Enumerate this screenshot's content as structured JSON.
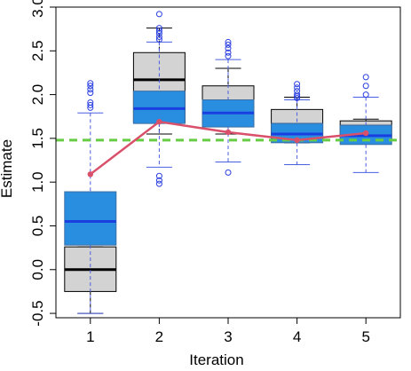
{
  "chart_data": {
    "type": "boxplot",
    "title": "",
    "xlabel": "Iteration",
    "ylabel": "Estimate",
    "categories": [
      "1",
      "2",
      "3",
      "4",
      "5"
    ],
    "ylim": [
      -0.55,
      3.0
    ],
    "yticks": [
      "-0.5",
      "0.0",
      "0.5",
      "1.0",
      "1.5",
      "2.0",
      "2.5",
      "3.0"
    ],
    "reference_line": {
      "value": 1.48,
      "style": "dashed",
      "color": "#66cc44"
    },
    "series": [
      {
        "color": "#d3d3d3",
        "median_color": "#000000",
        "whisker_color": "#000000",
        "boxes": [
          {
            "q1": -0.25,
            "median": 0.0,
            "q3": 0.26,
            "lower": -0.5,
            "upper": 0.26,
            "outliers": []
          },
          {
            "q1": 1.68,
            "median": 2.17,
            "q3": 2.48,
            "lower": 1.55,
            "upper": 2.76,
            "outliers": []
          },
          {
            "q1": 1.66,
            "median": 1.88,
            "q3": 2.1,
            "lower": 1.55,
            "upper": 2.3,
            "outliers": []
          },
          {
            "q1": 1.48,
            "median": 1.66,
            "q3": 1.83,
            "lower": 1.45,
            "upper": 1.97,
            "outliers": []
          },
          {
            "q1": 1.5,
            "median": 1.64,
            "q3": 1.7,
            "lower": 1.45,
            "upper": 1.72,
            "outliers": []
          }
        ]
      },
      {
        "color": "#2a8ee0",
        "median_color": "#1a3fe0",
        "whisker_color": "#4a5fe0",
        "boxes": [
          {
            "q1": 0.28,
            "median": 0.55,
            "q3": 0.89,
            "lower": -0.5,
            "upper": 1.79,
            "outliers": [
              1.85,
              1.88,
              1.91,
              2.02,
              2.06,
              2.1,
              2.13
            ]
          },
          {
            "q1": 1.67,
            "median": 1.84,
            "q3": 2.04,
            "lower": 1.17,
            "upper": 2.6,
            "outliers": [
              0.98,
              1.02,
              1.07,
              2.63,
              2.66,
              2.7,
              2.73,
              2.76,
              2.92
            ]
          },
          {
            "q1": 1.63,
            "median": 1.79,
            "q3": 1.94,
            "lower": 1.23,
            "upper": 2.4,
            "outliers": [
              1.11,
              2.44,
              2.48,
              2.53,
              2.57,
              2.6
            ]
          },
          {
            "q1": 1.45,
            "median": 1.55,
            "q3": 1.67,
            "lower": 1.2,
            "upper": 1.94,
            "outliers": [
              1.96,
              1.98,
              2.0,
              2.04,
              2.08,
              2.12
            ]
          },
          {
            "q1": 1.43,
            "median": 1.53,
            "q3": 1.65,
            "lower": 1.11,
            "upper": 1.97,
            "outliers": [
              2.0,
              2.1,
              2.2
            ]
          }
        ]
      }
    ],
    "line_series": {
      "color": "#d9506a",
      "x": [
        "1",
        "2",
        "3",
        "4",
        "5"
      ],
      "y": [
        1.09,
        1.69,
        1.57,
        1.48,
        1.56
      ]
    }
  }
}
